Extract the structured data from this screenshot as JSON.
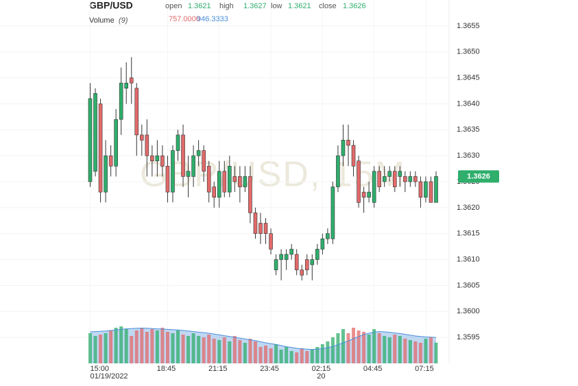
{
  "chart_data": {
    "type": "candlestick",
    "title": "GBP/USD",
    "watermark": "GBP/USD, 15M",
    "ohlc_legend": [
      {
        "name": "open",
        "value": 1.3621
      },
      {
        "name": "high",
        "value": 1.3627
      },
      {
        "name": "low",
        "value": 1.3621
      },
      {
        "name": "close",
        "value": 1.3626
      }
    ],
    "volume_legend": {
      "name": "Volume",
      "period": {
        "value": 9,
        "label": "(9)"
      },
      "volume": {
        "value": 757,
        "label": "757.0000"
      },
      "average": {
        "value": 946.3333,
        "label": "946.3333"
      }
    },
    "categories": [
      "15:00",
      null,
      null,
      null,
      null,
      null,
      null,
      null,
      null,
      null,
      null,
      null,
      null,
      null,
      null,
      "18:45",
      null,
      null,
      null,
      null,
      null,
      null,
      null,
      null,
      null,
      "21:15",
      null,
      null,
      null,
      null,
      null,
      null,
      null,
      null,
      null,
      "23:45",
      null,
      null,
      null,
      null,
      null,
      null,
      null,
      null,
      null,
      "02:15",
      null,
      null,
      null,
      null,
      null,
      null,
      null,
      null,
      null,
      "04:45",
      null,
      null,
      null,
      null,
      null,
      null,
      null,
      null,
      null,
      "07:15",
      null,
      null
    ],
    "date_labels": [
      "01/19/2022",
      null,
      null,
      null,
      null,
      null,
      null,
      null,
      null,
      null,
      null,
      null,
      null,
      null,
      null,
      null,
      null,
      null,
      null,
      null,
      null,
      null,
      null,
      null,
      null,
      null,
      null,
      null,
      null,
      null,
      null,
      null,
      null,
      null,
      null,
      null,
      null,
      null,
      null,
      null,
      null,
      null,
      null,
      null,
      null,
      "20",
      null,
      null,
      null,
      null,
      null,
      null,
      null,
      null,
      null,
      null,
      null,
      null,
      null,
      null,
      null,
      null,
      null,
      null,
      null,
      null,
      null,
      null
    ],
    "open": [
      1.3625,
      1.3627,
      1.364,
      1.3623,
      1.363,
      1.3628,
      1.3637,
      1.3643,
      1.3645,
      1.3643,
      1.3634,
      1.3634,
      1.363,
      1.3629,
      1.363,
      1.3628,
      1.3623,
      1.3631,
      1.3634,
      1.3626,
      1.3626,
      1.363,
      1.3631,
      1.3628,
      1.3624,
      1.3622,
      1.3627,
      1.3623,
      1.3626,
      1.3626,
      1.3624,
      1.3626,
      1.3619,
      1.3617,
      1.3617,
      1.3615,
      1.3608,
      1.361,
      1.361,
      1.3611,
      1.3611,
      1.3608,
      1.361,
      1.3609,
      1.361,
      1.3612,
      1.3614,
      1.3614,
      1.3624,
      1.363,
      1.3633,
      1.3632,
      1.3629,
      1.3623,
      1.3622,
      1.3621,
      1.3627,
      1.3625,
      1.3626,
      1.3627,
      1.3626,
      1.3626,
      1.3625,
      1.3626,
      1.3625,
      1.3622,
      1.3625,
      1.3621
    ],
    "high": [
      1.3644,
      1.3643,
      1.3641,
      1.3633,
      1.3632,
      1.3639,
      1.3647,
      1.3648,
      1.3649,
      1.3644,
      1.3636,
      1.3637,
      1.3632,
      1.3633,
      1.3632,
      1.363,
      1.3632,
      1.3635,
      1.3636,
      1.363,
      1.3632,
      1.3633,
      1.3632,
      1.3629,
      1.3625,
      1.3629,
      1.3629,
      1.363,
      1.3628,
      1.3628,
      1.3628,
      1.3628,
      1.362,
      1.3619,
      1.3618,
      1.3616,
      1.3611,
      1.3612,
      1.3612,
      1.3613,
      1.3612,
      1.3609,
      1.3611,
      1.3611,
      1.3613,
      1.3615,
      1.3616,
      1.3625,
      1.3632,
      1.3636,
      1.3636,
      1.3633,
      1.363,
      1.3624,
      1.3625,
      1.3628,
      1.3628,
      1.3628,
      1.3628,
      1.3628,
      1.3628,
      1.3627,
      1.3627,
      1.3627,
      1.3626,
      1.3626,
      1.3626,
      1.3627
    ],
    "low": [
      1.3624,
      1.3626,
      1.3621,
      1.3621,
      1.3626,
      1.3626,
      1.3634,
      1.364,
      1.364,
      1.363,
      1.363,
      1.3626,
      1.3626,
      1.3626,
      1.3626,
      1.3621,
      1.3621,
      1.3629,
      1.3624,
      1.3622,
      1.3624,
      1.3628,
      1.3625,
      1.3621,
      1.362,
      1.362,
      1.3622,
      1.3622,
      1.3623,
      1.3621,
      1.3623,
      1.3617,
      1.3614,
      1.3613,
      1.3613,
      1.3611,
      1.3607,
      1.3606,
      1.3608,
      1.361,
      1.3607,
      1.3606,
      1.3607,
      1.3606,
      1.3609,
      1.3611,
      1.3613,
      1.3613,
      1.3623,
      1.3628,
      1.3628,
      1.3626,
      1.362,
      1.3619,
      1.3621,
      1.362,
      1.3623,
      1.3624,
      1.3625,
      1.3623,
      1.3624,
      1.3623,
      1.3624,
      1.3624,
      1.362,
      1.3621,
      1.3621,
      1.3621
    ],
    "close": [
      1.3641,
      1.3642,
      1.3623,
      1.363,
      1.3628,
      1.3637,
      1.3644,
      1.3644,
      1.3644,
      1.3634,
      1.3633,
      1.363,
      1.3629,
      1.363,
      1.3628,
      1.3623,
      1.3631,
      1.3634,
      1.3626,
      1.3627,
      1.363,
      1.3631,
      1.3627,
      1.3623,
      1.3622,
      1.3627,
      1.3623,
      1.3628,
      1.3625,
      1.3624,
      1.3626,
      1.3619,
      1.3615,
      1.3615,
      1.3615,
      1.3612,
      1.361,
      1.3611,
      1.3611,
      1.3612,
      1.3608,
      1.3607,
      1.3608,
      1.361,
      1.3612,
      1.3614,
      1.3615,
      1.3624,
      1.363,
      1.3633,
      1.3632,
      1.3628,
      1.3621,
      1.3622,
      1.3623,
      1.3627,
      1.3624,
      1.3626,
      1.3627,
      1.3624,
      1.3627,
      1.3625,
      1.3626,
      1.3625,
      1.3622,
      1.3625,
      1.3621,
      1.3626
    ],
    "volume": [
      1100,
      1000,
      1050,
      1100,
      1200,
      1300,
      1350,
      1250,
      1000,
      1200,
      1300,
      1150,
      1250,
      1200,
      1300,
      1150,
      1100,
      1200,
      1050,
      1000,
      1100,
      1000,
      950,
      1050,
      900,
      850,
      950,
      800,
      1000,
      850,
      750,
      900,
      800,
      600,
      650,
      550,
      700,
      500,
      600,
      450,
      400,
      550,
      450,
      500,
      600,
      700,
      800,
      950,
      1100,
      1250,
      1100,
      1300,
      1200,
      1150,
      1050,
      1250,
      1100,
      1000,
      950,
      1050,
      1000,
      900,
      850,
      800,
      750,
      900,
      950,
      757
    ],
    "volume_average": [
      1150,
      1160,
      1170,
      1180,
      1200,
      1220,
      1240,
      1260,
      1270,
      1280,
      1285,
      1280,
      1270,
      1260,
      1250,
      1240,
      1230,
      1220,
      1200,
      1180,
      1160,
      1140,
      1120,
      1100,
      1070,
      1040,
      1010,
      980,
      950,
      920,
      890,
      860,
      830,
      790,
      750,
      720,
      690,
      650,
      610,
      580,
      550,
      530,
      520,
      510,
      520,
      540,
      570,
      620,
      680,
      750,
      820,
      900,
      980,
      1050,
      1100,
      1140,
      1160,
      1150,
      1130,
      1110,
      1090,
      1060,
      1030,
      1000,
      980,
      965,
      955,
      946.3333
    ],
    "up_color": "#2fae6c",
    "down_color": "#e16a6a",
    "average_color": "#4a8fdb",
    "last_price": 1.3626,
    "ylim": [
      1.359,
      1.366
    ],
    "yticks": [
      1.3655,
      {
        "value": 1.365,
        "label": "1.3650"
      },
      1.3645,
      {
        "value": 1.364,
        "label": "1.3640"
      },
      1.3635,
      {
        "value": 1.363,
        "label": "1.3630"
      },
      1.3625,
      {
        "value": 1.362,
        "label": "1.3620"
      },
      1.3615,
      {
        "value": 1.361,
        "label": "1.3610"
      },
      1.3605,
      {
        "value": 1.36,
        "label": "1.3600"
      },
      1.3595
    ],
    "grid": true
  }
}
